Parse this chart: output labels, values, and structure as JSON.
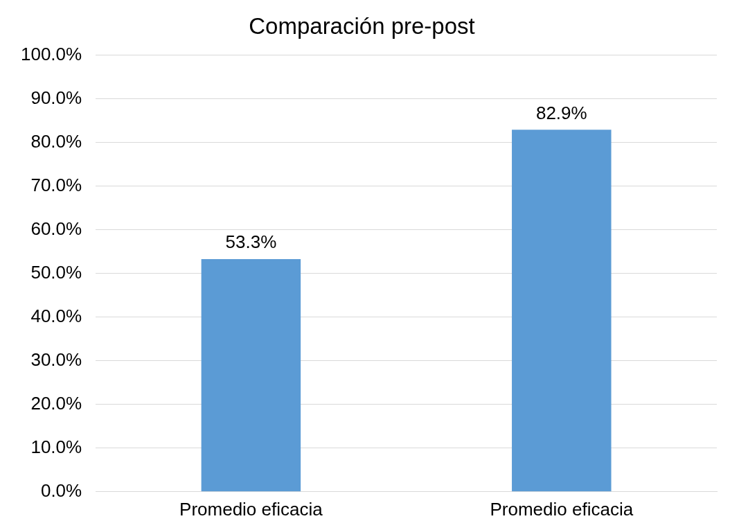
{
  "chart_data": {
    "type": "bar",
    "title": "Comparación pre-post",
    "categories": [
      "Promedio eficacia",
      "Promedio eficacia"
    ],
    "values": [
      53.3,
      82.9
    ],
    "color": "#5b9bd5",
    "value_labels": [
      "53.3%",
      "82.9%"
    ],
    "ylim": [
      0,
      100
    ],
    "yticks": [
      {
        "value": 0,
        "label": "0.0%"
      },
      {
        "value": 10,
        "label": "10.0%"
      },
      {
        "value": 20,
        "label": "20.0%"
      },
      {
        "value": 30,
        "label": "30.0%"
      },
      {
        "value": 40,
        "label": "40.0%"
      },
      {
        "value": 50,
        "label": "50.0%"
      },
      {
        "value": 60,
        "label": "60.0%"
      },
      {
        "value": 70,
        "label": "70.0%"
      },
      {
        "value": 80,
        "label": "80.0%"
      },
      {
        "value": 90,
        "label": "90.0%"
      },
      {
        "value": 100,
        "label": "100.0%"
      }
    ],
    "grid": "y",
    "legend": false
  }
}
